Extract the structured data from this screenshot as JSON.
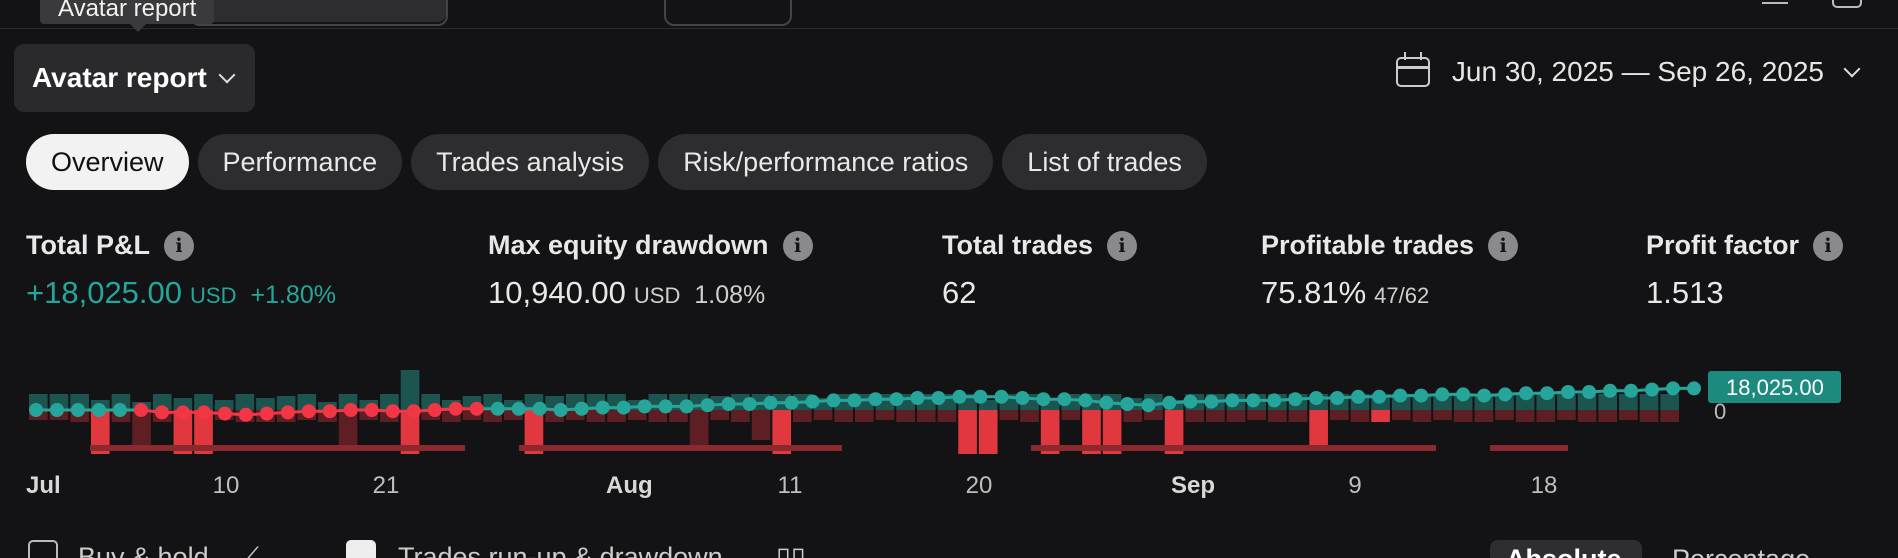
{
  "tooltip": "Avatar report",
  "report_selector": {
    "label": "Avatar report"
  },
  "date_range": {
    "label": "Jun 30, 2025 — Sep 26, 2025"
  },
  "tabs": [
    {
      "label": "Overview",
      "active": true
    },
    {
      "label": "Performance"
    },
    {
      "label": "Trades analysis"
    },
    {
      "label": "Risk/performance ratios"
    },
    {
      "label": "List of trades"
    }
  ],
  "stats": {
    "total_pnl": {
      "label": "Total P&L",
      "value": "+18,025.00",
      "unit": "USD",
      "pct": "+1.80%"
    },
    "max_drawdown": {
      "label": "Max equity drawdown",
      "value": "10,940.00",
      "unit": "USD",
      "pct": "1.08%"
    },
    "total_trades": {
      "label": "Total trades",
      "value": "62"
    },
    "profitable_trades": {
      "label": "Profitable trades",
      "value": "75.81%",
      "sub": "47/62"
    },
    "profit_factor": {
      "label": "Profit factor",
      "value": "1.513"
    }
  },
  "info_glyph": "i",
  "chart_data": {
    "type": "line",
    "last_value_label": "18,025.00",
    "zero_label": "0",
    "x_tick_labels": [
      "Jul",
      "10",
      "21",
      "Aug",
      "11",
      "20",
      "Sep",
      "9",
      "18"
    ],
    "bold_ticks": [
      "Jul",
      "Aug",
      "Sep"
    ],
    "equity_series": {
      "name": "",
      "values": [
        0,
        0,
        0,
        0,
        0,
        0,
        -1,
        -1,
        -1,
        -1.5,
        -2,
        -1.5,
        -1,
        -0.5,
        -0.5,
        0,
        0,
        -0.5,
        -0.5,
        0,
        0.5,
        0.5,
        0.5,
        0.5,
        0.5,
        0,
        0.5,
        1,
        1,
        1.5,
        1.5,
        1.5,
        2,
        2.5,
        2.5,
        3,
        3,
        3.5,
        4,
        4,
        4.5,
        4.5,
        5,
        5,
        5.5,
        5.5,
        5.5,
        5,
        4.5,
        4.5,
        4,
        3,
        2.5,
        2,
        3,
        3.5,
        3.5,
        4,
        4,
        4,
        4.5,
        5,
        5,
        5.5,
        5.5,
        6,
        6,
        6.5,
        6.5,
        6,
        6.5,
        7,
        7,
        7.5,
        7.5,
        8,
        8,
        8.5,
        9,
        9
      ],
      "loss_segment_range": [
        5,
        21
      ],
      "colors": {
        "gain": "#26a69a",
        "loss": "#f23645"
      }
    },
    "trade_bars": {
      "runup": [
        16,
        16,
        16,
        10,
        16,
        8,
        16,
        12,
        16,
        10,
        16,
        12,
        14,
        16,
        8,
        16,
        10,
        16,
        40,
        16,
        10,
        14,
        16,
        10,
        16,
        14,
        16,
        16,
        16,
        10,
        16,
        16,
        16,
        14,
        16,
        16,
        16,
        16,
        12,
        16,
        16,
        16,
        16,
        16,
        16,
        16,
        10,
        16,
        16,
        12,
        16,
        16,
        16,
        12,
        16,
        10,
        16,
        16,
        16,
        16,
        16,
        16,
        16,
        16,
        16,
        16,
        16,
        16,
        16,
        16,
        16,
        16,
        16,
        16,
        16,
        16,
        16,
        16,
        16,
        16
      ],
      "drawdown": [
        10,
        10,
        12,
        44,
        12,
        40,
        12,
        44,
        44,
        10,
        12,
        12,
        12,
        10,
        12,
        40,
        10,
        12,
        44,
        10,
        12,
        10,
        12,
        10,
        44,
        12,
        10,
        12,
        12,
        10,
        12,
        12,
        40,
        10,
        12,
        30,
        44,
        12,
        10,
        12,
        12,
        10,
        12,
        12,
        12,
        44,
        44,
        10,
        12,
        44,
        10,
        44,
        44,
        12,
        10,
        44,
        12,
        12,
        12,
        10,
        12,
        12,
        40,
        10,
        12,
        12,
        10,
        12,
        10,
        12,
        12,
        10,
        12,
        12,
        10,
        12,
        12,
        10,
        12,
        12
      ],
      "highlight_indices": [
        3,
        7,
        8,
        18,
        24,
        36,
        45,
        46,
        49,
        51,
        52,
        55,
        62,
        65
      ],
      "colors": {
        "runup": "#1c5550",
        "drawdown": "#5e1f24",
        "drawdown_highlight": "#e0383e"
      }
    },
    "grid": false,
    "legend": "none"
  },
  "bottom_bar": {
    "buy_hold": "Buy & hold",
    "trades_runup": "Trades run-up & drawdown",
    "absolute": "Absolute",
    "percentage": "Percentage"
  },
  "colors": {
    "accent_green": "#26a69a",
    "accent_red": "#f23645",
    "background": "#131214"
  }
}
